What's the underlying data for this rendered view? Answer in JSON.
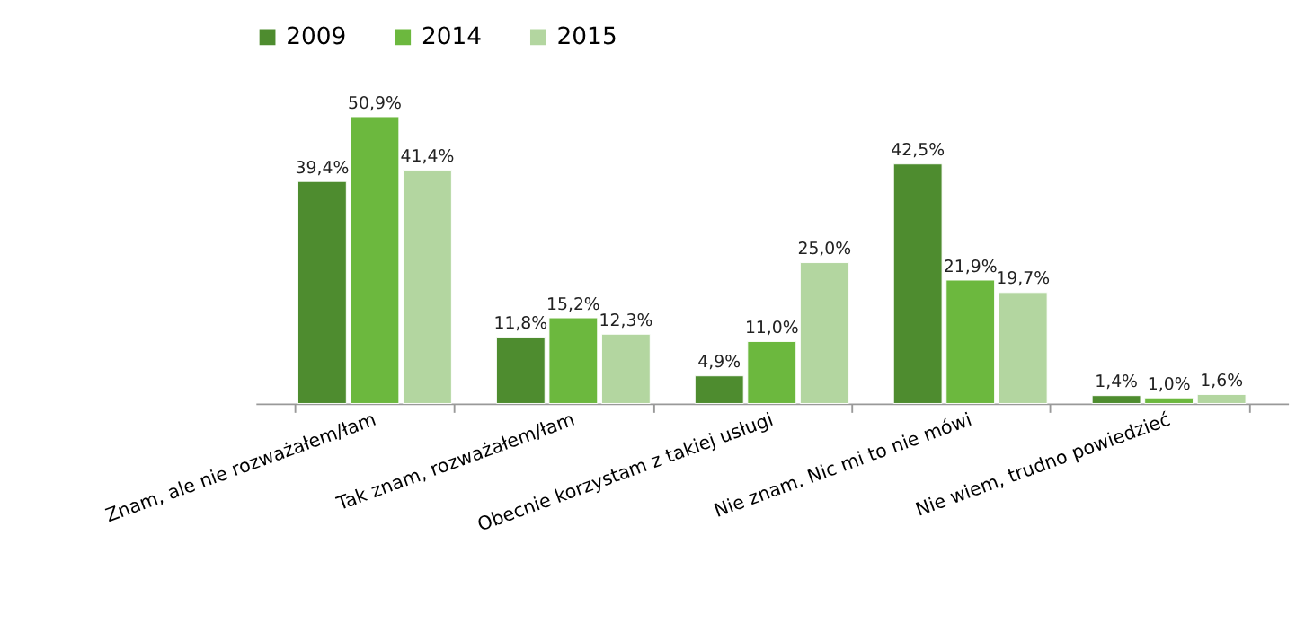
{
  "chart_data": {
    "type": "bar",
    "categories": [
      "Znam, ale nie rozważałem/łam",
      "Tak znam, rozważałem/łam",
      "Obecnie korzystam z takiej usługi",
      "Nie znam. Nic mi to nie mówi",
      "Nie wiem, trudno powiedzieć"
    ],
    "series": [
      {
        "name": "2009",
        "color": "#4e8c2f",
        "values": [
          39.4,
          11.8,
          4.9,
          42.5,
          1.4
        ],
        "value_labels": [
          "39,4%",
          "11,8%",
          "4,9%",
          "42,5%",
          "1,4%"
        ]
      },
      {
        "name": "2014",
        "color": "#6cb83e",
        "values": [
          50.9,
          15.2,
          11.0,
          21.9,
          1.0
        ],
        "value_labels": [
          "50,9%",
          "15,2%",
          "11,0%",
          "21,9%",
          "1,0%"
        ]
      },
      {
        "name": "2015",
        "color": "#b3d6a0",
        "values": [
          41.4,
          12.3,
          25.0,
          19.7,
          1.6
        ],
        "value_labels": [
          "41,4%",
          "12,3%",
          "25,0%",
          "19,7%",
          "1,6%"
        ]
      }
    ],
    "legend": "top",
    "grid": false
  }
}
